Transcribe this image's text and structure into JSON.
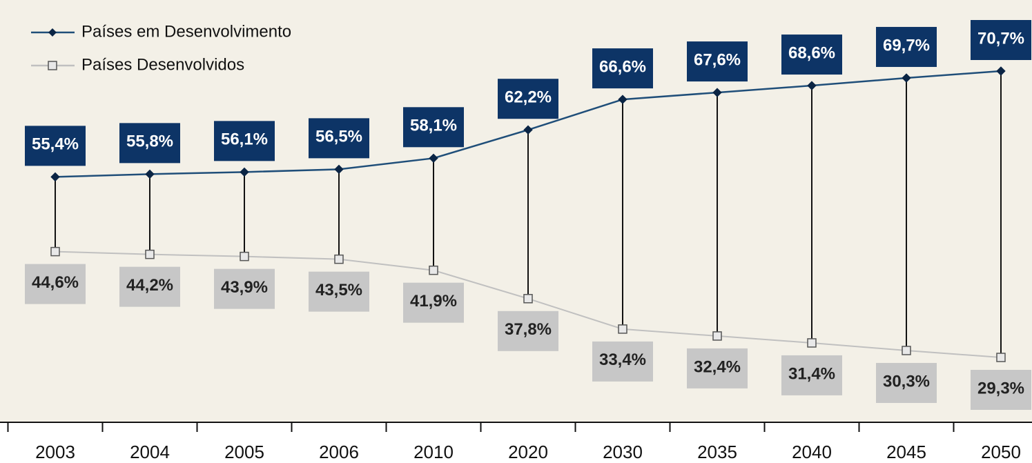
{
  "chart_data": {
    "type": "line",
    "categories": [
      "2003",
      "2004",
      "2005",
      "2006",
      "2010",
      "2020",
      "2030",
      "2035",
      "2040",
      "2045",
      "2050"
    ],
    "series": [
      {
        "name": "Países em Desenvolvimento",
        "color": "#1f4e79",
        "values": [
          55.4,
          55.8,
          56.1,
          56.5,
          58.1,
          62.2,
          66.6,
          67.6,
          68.6,
          69.7,
          70.7
        ],
        "value_labels": [
          "55,4%",
          "55,8%",
          "56,1%",
          "56,5%",
          "58,1%",
          "62,2%",
          "66,6%",
          "67,6%",
          "68,6%",
          "69,7%",
          "70,7%"
        ]
      },
      {
        "name": "Países Desenvolvidos",
        "color": "#c0c0c0",
        "values": [
          44.6,
          44.2,
          43.9,
          43.5,
          41.9,
          37.8,
          33.4,
          32.4,
          31.4,
          30.3,
          29.3
        ],
        "value_labels": [
          "44,6%",
          "44,2%",
          "43,9%",
          "43,5%",
          "41,9%",
          "37,8%",
          "33,4%",
          "32,4%",
          "31,4%",
          "30,3%",
          "29,3%"
        ]
      }
    ]
  }
}
